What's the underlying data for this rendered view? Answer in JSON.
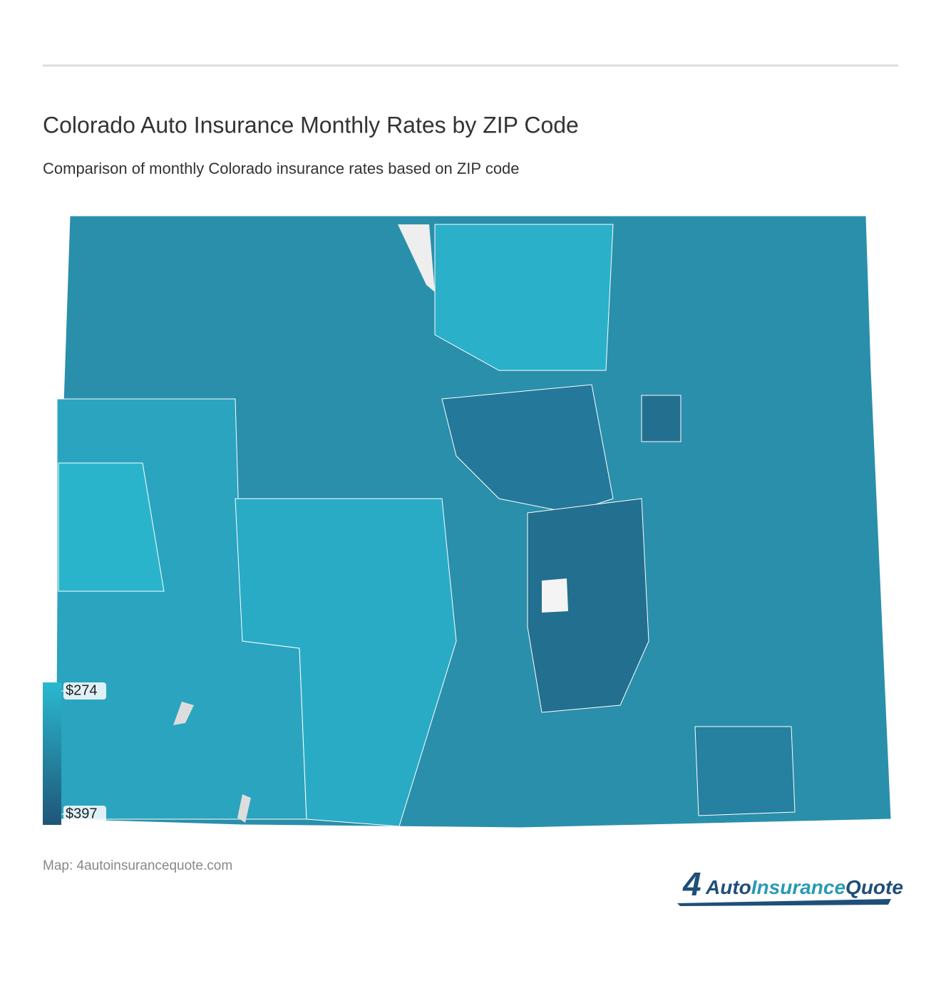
{
  "header": {
    "title": "Colorado Auto Insurance Monthly Rates by ZIP Code",
    "subtitle": "Comparison of monthly Colorado insurance rates based on ZIP code"
  },
  "legend": {
    "colors": [
      "#2ab9d0",
      "#1f5578"
    ],
    "ticks": [
      {
        "value": 274,
        "label": "$274"
      },
      {
        "value": 397,
        "label": "$397"
      }
    ]
  },
  "footer": {
    "source": "Map: 4autoinsurancequote.com",
    "logo": {
      "mark": "4",
      "name": [
        "Auto",
        "Insurance",
        "Quote"
      ]
    }
  }
}
